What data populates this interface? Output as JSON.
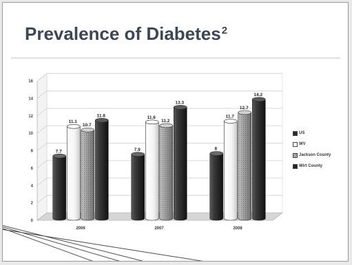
{
  "slide": {
    "title": "Prevalence of Diabetes",
    "title_superscript": "2"
  },
  "chart_data": {
    "type": "bar",
    "style": "3d-cylinders",
    "categories": [
      "2006",
      "2007",
      "2008"
    ],
    "series": [
      {
        "name": "US",
        "values": [
          7.7,
          7.9,
          8
        ],
        "labels": [
          "7.7",
          "7.9",
          "8"
        ],
        "color": "#2b2b2b"
      },
      {
        "name": "WV",
        "values": [
          11.1,
          11.6,
          11.7
        ],
        "labels": [
          "11.1",
          "11.6",
          "11.7"
        ],
        "color": "#ffffff"
      },
      {
        "name": "Jackson County",
        "values": [
          10.7,
          11.2,
          12.7
        ],
        "labels": [
          "10.7",
          "11.2",
          "12.7"
        ],
        "color": "#9c9c9c"
      },
      {
        "name": "Wirt County",
        "values": [
          11.8,
          13.3,
          14.2
        ],
        "labels": [
          "11.8",
          "13.3",
          "14.2"
        ],
        "color": "#262626"
      }
    ],
    "ylim": [
      0,
      16
    ],
    "yticks": [
      "0",
      "2",
      "4",
      "6",
      "8",
      "10",
      "12",
      "14",
      "16"
    ],
    "grid": true,
    "legend_position": "right",
    "title": "",
    "xlabel": "",
    "ylabel": ""
  }
}
